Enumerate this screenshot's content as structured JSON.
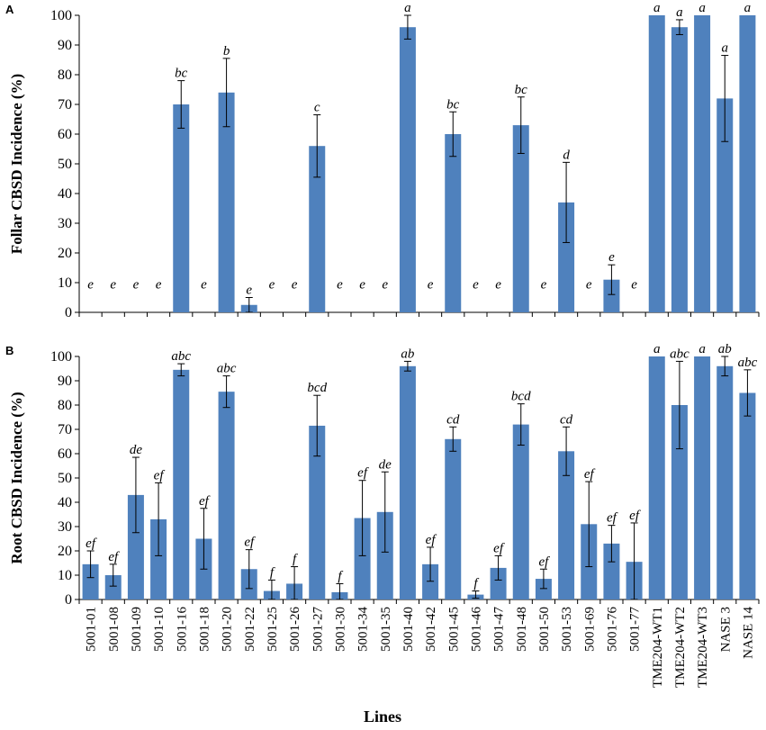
{
  "chart_data": [
    {
      "type": "bar",
      "panel_label": "A",
      "ylabel": "Follar CBSD Incidence (%)",
      "xlabel": "Lines",
      "ylim": [
        0,
        100
      ],
      "yticks": [
        "0",
        "10",
        "20",
        "30",
        "40",
        "50",
        "60",
        "70",
        "80",
        "90",
        "100"
      ],
      "grid": false,
      "bar_color": "#4f81bd",
      "categories": [
        "5001-01",
        "5001-08",
        "5001-09",
        "5001-10",
        "5001-16",
        "5001-18",
        "5001-20",
        "5001-22",
        "5001-25",
        "5001-26",
        "5001-27",
        "5001-30",
        "5001-34",
        "5001-35",
        "5001-40",
        "5001-42",
        "5001-45",
        "5001-46",
        "5001-47",
        "5001-48",
        "5001-50",
        "5001-53",
        "5001-69",
        "5001-76",
        "5001-77",
        "TME204-WT1",
        "TME204-WT2",
        "TME204-WT3",
        "NASE 3",
        "NASE 14"
      ],
      "values": [
        0,
        0,
        0,
        0,
        70,
        0,
        74,
        2.5,
        0,
        0,
        56,
        0,
        0,
        0,
        96,
        0,
        60,
        0,
        0,
        63,
        0,
        37,
        0,
        11,
        0,
        100,
        96,
        100,
        72,
        100
      ],
      "errors": [
        0,
        0,
        0,
        0,
        8,
        0,
        11.5,
        2.5,
        0,
        0,
        10.5,
        0,
        0,
        0,
        4,
        0,
        7.5,
        0,
        0,
        9.5,
        0,
        13.5,
        0,
        5,
        0,
        0,
        2.5,
        0,
        14.5,
        0
      ],
      "letters": [
        "e",
        "e",
        "e",
        "e",
        "bc",
        "e",
        "b",
        "e",
        "e",
        "e",
        "c",
        "e",
        "e",
        "e",
        "a",
        "e",
        "bc",
        "e",
        "e",
        "bc",
        "e",
        "d",
        "e",
        "e",
        "e",
        "a",
        "a",
        "a",
        "a",
        "a"
      ]
    },
    {
      "type": "bar",
      "panel_label": "B",
      "ylabel": "Root CBSD Incidence (%)",
      "xlabel": "Lines",
      "ylim": [
        0,
        100
      ],
      "yticks": [
        "0",
        "10",
        "20",
        "30",
        "40",
        "50",
        "60",
        "70",
        "80",
        "90",
        "100"
      ],
      "grid": false,
      "bar_color": "#4f81bd",
      "categories": [
        "5001-01",
        "5001-08",
        "5001-09",
        "5001-10",
        "5001-16",
        "5001-18",
        "5001-20",
        "5001-22",
        "5001-25",
        "5001-26",
        "5001-27",
        "5001-30",
        "5001-34",
        "5001-35",
        "5001-40",
        "5001-42",
        "5001-45",
        "5001-46",
        "5001-47",
        "5001-48",
        "5001-50",
        "5001-53",
        "5001-69",
        "5001-76",
        "5001-77",
        "TME204-WT1",
        "TME204-WT2",
        "TME204-WT3",
        "NASE 3",
        "NASE 14"
      ],
      "values": [
        14.5,
        10,
        43,
        33,
        94.5,
        25,
        85.5,
        12.5,
        3.5,
        6.5,
        71.5,
        3,
        33.5,
        36,
        96,
        14.5,
        66,
        2,
        13,
        72,
        8.5,
        61,
        31,
        23,
        15.5,
        100,
        80,
        100,
        96,
        85
      ],
      "errors": [
        5.5,
        4.5,
        15.5,
        15,
        2.5,
        12.5,
        6.5,
        8,
        4.5,
        7,
        12.5,
        3.5,
        15.5,
        16.5,
        2,
        7,
        5,
        1.5,
        5,
        8.5,
        4,
        10,
        17.5,
        7.5,
        16,
        0,
        18,
        0,
        4,
        9.5
      ],
      "letters": [
        "ef",
        "ef",
        "de",
        "ef",
        "abc",
        "ef",
        "abc",
        "ef",
        "f",
        "f",
        "bcd",
        "f",
        "ef",
        "de",
        "ab",
        "ef",
        "cd",
        "f",
        "ef",
        "bcd",
        "ef",
        "cd",
        "ef",
        "ef",
        "ef",
        "a",
        "abc",
        "a",
        "ab",
        "abc"
      ]
    }
  ]
}
